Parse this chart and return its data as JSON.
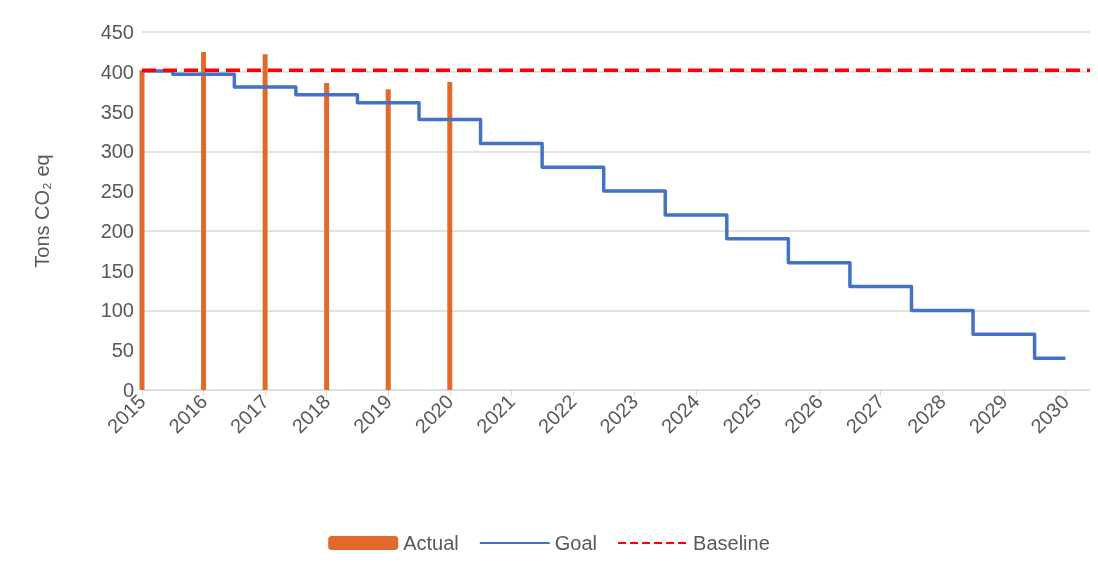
{
  "chart_data": {
    "type": "bar",
    "ylabel": "Tons CO₂ eq",
    "xlim": [
      2015,
      2030.4
    ],
    "xticks": [
      2015,
      2016,
      2017,
      2018,
      2019,
      2020,
      2021,
      2022,
      2023,
      2024,
      2025,
      2026,
      2027,
      2028,
      2029,
      2030
    ],
    "ylim": [
      0,
      450
    ],
    "yticks": [
      0,
      50,
      100,
      150,
      200,
      250,
      300,
      350,
      400,
      450
    ],
    "grid": "y",
    "legend": "bottom",
    "marker": "none",
    "series": [
      {
        "name": "Actual",
        "color": "#e06a2b",
        "x": [
          2015,
          2016,
          2017,
          2018,
          2019,
          2020
        ],
        "values": [
          402,
          425,
          422,
          386,
          378,
          387
        ]
      },
      {
        "name": "Goal",
        "type": "step",
        "color": "#4472c4",
        "x": [
          2015,
          2016,
          2017,
          2018,
          2019,
          2020,
          2021,
          2022,
          2023,
          2024,
          2025,
          2026,
          2027,
          2028,
          2029,
          2030
        ],
        "values": [
          401,
          397,
          381,
          371,
          361,
          340,
          310,
          280,
          250,
          220,
          190,
          160,
          130,
          100,
          70,
          40
        ]
      },
      {
        "name": "Baseline",
        "type": "line",
        "line_style": "dashed",
        "color": "#ff0000",
        "x": [
          2015,
          2030.4
        ],
        "values": [
          402,
          402
        ]
      }
    ]
  }
}
